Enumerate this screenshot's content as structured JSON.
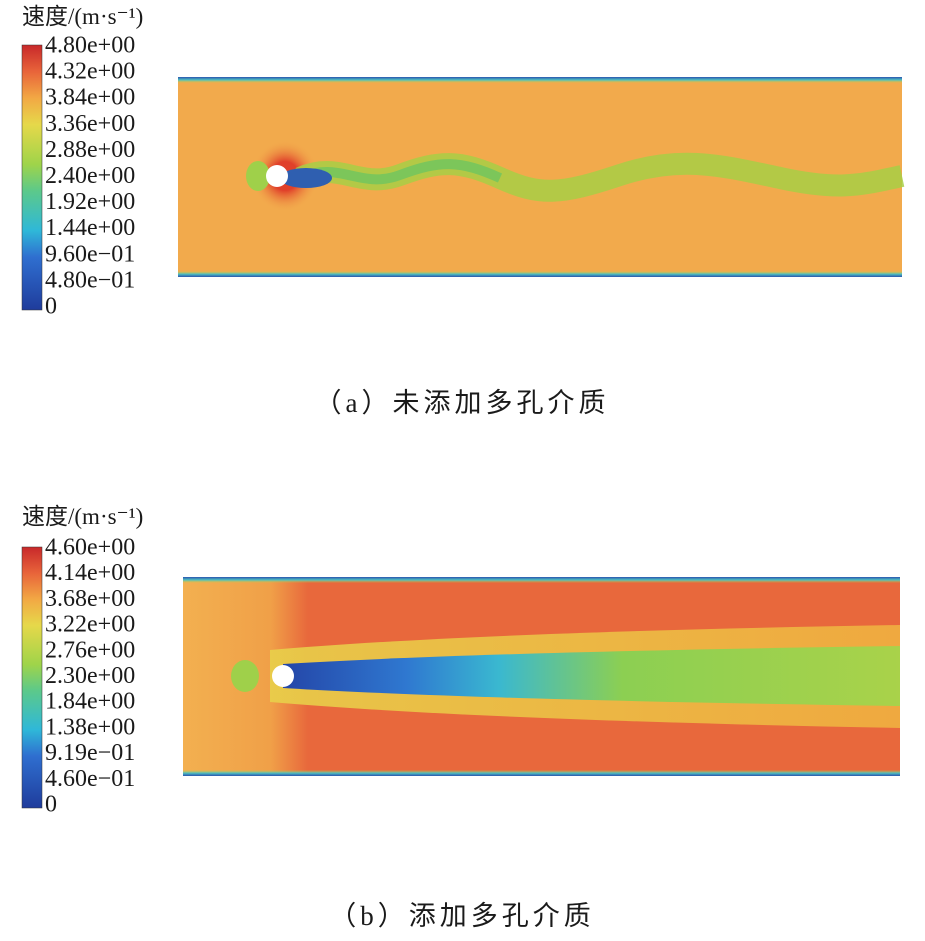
{
  "panels": [
    {
      "colorbar": {
        "title": "速度/(m·s⁻¹)",
        "labels": [
          "4.80e+00",
          "4.32e+00",
          "3.84e+00",
          "3.36e+00",
          "2.88e+00",
          "2.40e+00",
          "1.92e+00",
          "1.44e+00",
          "9.60e−01",
          "4.80e−01",
          "0"
        ]
      },
      "caption": "（a）未添加多孔介质"
    },
    {
      "colorbar": {
        "title": "速度/(m·s⁻¹)",
        "labels": [
          "4.60e+00",
          "4.14e+00",
          "3.68e+00",
          "3.22e+00",
          "2.76e+00",
          "2.30e+00",
          "1.84e+00",
          "1.38e+00",
          "9.19e−01",
          "4.60e−01",
          "0"
        ]
      },
      "caption": "（b）添加多孔介质"
    }
  ]
}
